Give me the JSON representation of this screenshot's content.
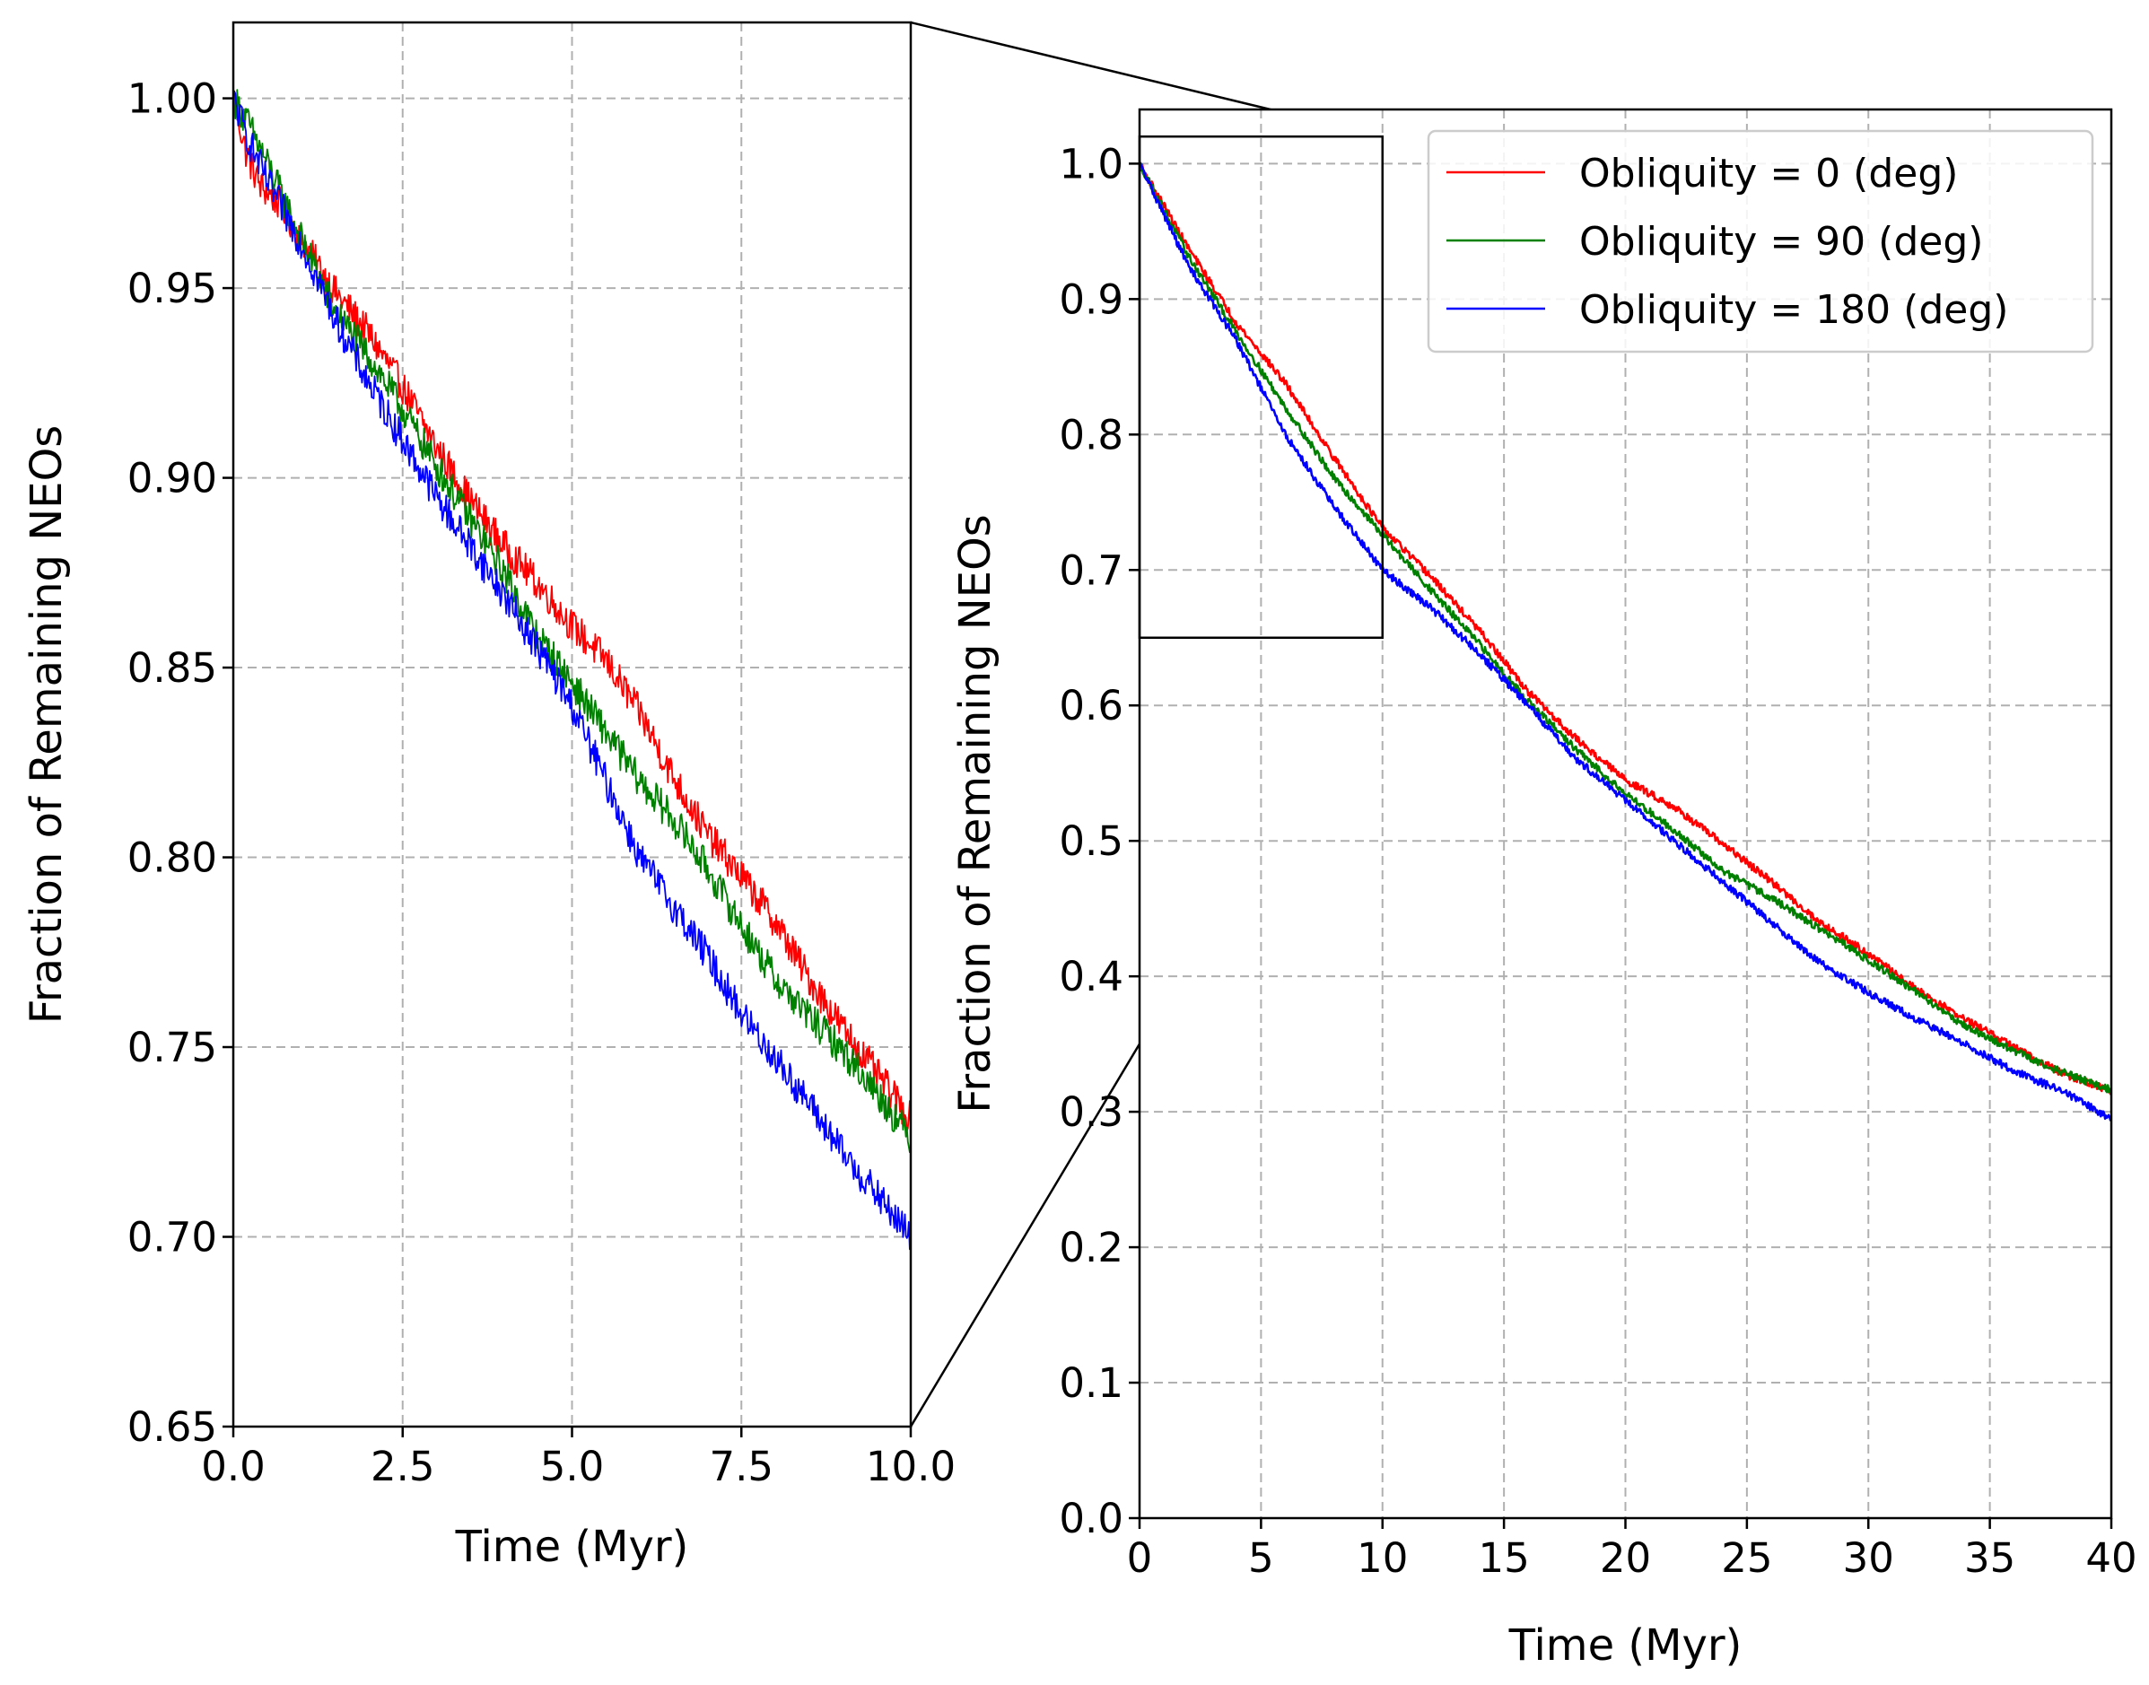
{
  "chart_data": [
    {
      "id": "zoom",
      "type": "line",
      "title": "",
      "xlabel": "Time (Myr)",
      "ylabel": "Fraction of Remaining NEOs",
      "xlim": [
        0,
        10
      ],
      "ylim": [
        0.65,
        1.02
      ],
      "xticks": [
        0,
        2.5,
        5,
        7.5,
        10
      ],
      "xtick_labels": [
        "0.0",
        "2.5",
        "5.0",
        "7.5",
        "10.0"
      ],
      "yticks": [
        0.65,
        0.7,
        0.75,
        0.8,
        0.85,
        0.9,
        0.95,
        1.0
      ],
      "ytick_labels": [
        "0.65",
        "0.70",
        "0.75",
        "0.80",
        "0.85",
        "0.90",
        "0.95",
        "1.00"
      ],
      "grid": true,
      "series": [
        {
          "name": "Obliquity = 0 (deg)",
          "color": "#ff0000",
          "x": [
            0,
            0.2,
            0.4,
            0.7,
            1.0,
            1.5,
            2.0,
            2.5,
            3.0,
            3.5,
            4.0,
            4.5,
            5.0,
            5.5,
            6.0,
            6.5,
            7.0,
            7.5,
            8.0,
            8.5,
            9.0,
            9.5,
            10.0
          ],
          "y": [
            1.0,
            0.985,
            0.977,
            0.972,
            0.963,
            0.949,
            0.938,
            0.924,
            0.908,
            0.894,
            0.882,
            0.872,
            0.861,
            0.852,
            0.838,
            0.821,
            0.806,
            0.795,
            0.783,
            0.768,
            0.755,
            0.743,
            0.731
          ]
        },
        {
          "name": "Obliquity = 90 (deg)",
          "color": "#008000",
          "x": [
            0,
            0.2,
            0.5,
            1.0,
            1.5,
            2.0,
            2.5,
            3.0,
            3.5,
            4.0,
            4.5,
            5.0,
            5.5,
            6.0,
            6.5,
            7.0,
            7.5,
            8.0,
            8.5,
            9.0,
            9.5,
            10.0
          ],
          "y": [
            1.0,
            0.994,
            0.983,
            0.963,
            0.944,
            0.932,
            0.918,
            0.903,
            0.889,
            0.875,
            0.858,
            0.846,
            0.833,
            0.82,
            0.81,
            0.797,
            0.782,
            0.768,
            0.758,
            0.749,
            0.738,
            0.726
          ]
        },
        {
          "name": "Obliquity = 180 (deg)",
          "color": "#0000ff",
          "x": [
            0,
            0.2,
            0.5,
            1.0,
            1.5,
            2.0,
            2.5,
            3.0,
            3.5,
            4.0,
            4.5,
            5.0,
            5.5,
            6.0,
            6.5,
            7.0,
            7.5,
            8.0,
            8.5,
            9.0,
            9.5,
            10.0
          ],
          "y": [
            1.0,
            0.99,
            0.978,
            0.962,
            0.942,
            0.925,
            0.91,
            0.895,
            0.882,
            0.869,
            0.855,
            0.84,
            0.82,
            0.8,
            0.787,
            0.774,
            0.759,
            0.747,
            0.735,
            0.722,
            0.711,
            0.7
          ]
        }
      ]
    },
    {
      "id": "full",
      "type": "line",
      "title": "",
      "xlabel": "Time (Myr)",
      "ylabel": "Fraction of Remaining NEOs",
      "xlim": [
        0,
        40
      ],
      "ylim": [
        0.0,
        1.04
      ],
      "xticks": [
        0,
        5,
        10,
        15,
        20,
        25,
        30,
        35,
        40
      ],
      "xtick_labels": [
        "0",
        "5",
        "10",
        "15",
        "20",
        "25",
        "30",
        "35",
        "40"
      ],
      "yticks": [
        0.0,
        0.1,
        0.2,
        0.3,
        0.4,
        0.5,
        0.6,
        0.7,
        0.8,
        0.9,
        1.0
      ],
      "ytick_labels": [
        "0.0",
        "0.1",
        "0.2",
        "0.3",
        "0.4",
        "0.5",
        "0.6",
        "0.7",
        "0.8",
        "0.9",
        "1.0"
      ],
      "grid": true,
      "legend_position": "top-right",
      "zoom_box": {
        "xlim": [
          0,
          10
        ],
        "ylim": [
          0.65,
          1.02
        ]
      },
      "series": [
        {
          "name": "Obliquity = 0 (deg)",
          "color": "#ff0000",
          "x": [
            0,
            2,
            4,
            6,
            8,
            10,
            12,
            14,
            16,
            18,
            20,
            22,
            24,
            26,
            28,
            30,
            32,
            34,
            36,
            38,
            40
          ],
          "y": [
            1.0,
            0.938,
            0.882,
            0.838,
            0.783,
            0.731,
            0.695,
            0.655,
            0.61,
            0.575,
            0.545,
            0.525,
            0.498,
            0.47,
            0.44,
            0.417,
            0.39,
            0.368,
            0.348,
            0.328,
            0.315
          ]
        },
        {
          "name": "Obliquity = 90 (deg)",
          "color": "#008000",
          "x": [
            0,
            2,
            4,
            6,
            8,
            10,
            12,
            14,
            16,
            18,
            20,
            22,
            24,
            26,
            28,
            30,
            32,
            34,
            36,
            38,
            40
          ],
          "y": [
            1.0,
            0.932,
            0.875,
            0.82,
            0.768,
            0.726,
            0.685,
            0.645,
            0.603,
            0.567,
            0.535,
            0.508,
            0.478,
            0.458,
            0.435,
            0.412,
            0.388,
            0.363,
            0.345,
            0.329,
            0.316
          ]
        },
        {
          "name": "Obliquity = 180 (deg)",
          "color": "#0000ff",
          "x": [
            0,
            2,
            4,
            6,
            8,
            10,
            12,
            14,
            16,
            18,
            20,
            22,
            24,
            26,
            28,
            30,
            32,
            34,
            36,
            38,
            40
          ],
          "y": [
            1.0,
            0.925,
            0.869,
            0.8,
            0.747,
            0.7,
            0.672,
            0.638,
            0.6,
            0.56,
            0.53,
            0.5,
            0.47,
            0.44,
            0.41,
            0.388,
            0.368,
            0.35,
            0.33,
            0.315,
            0.295
          ]
        }
      ]
    }
  ]
}
